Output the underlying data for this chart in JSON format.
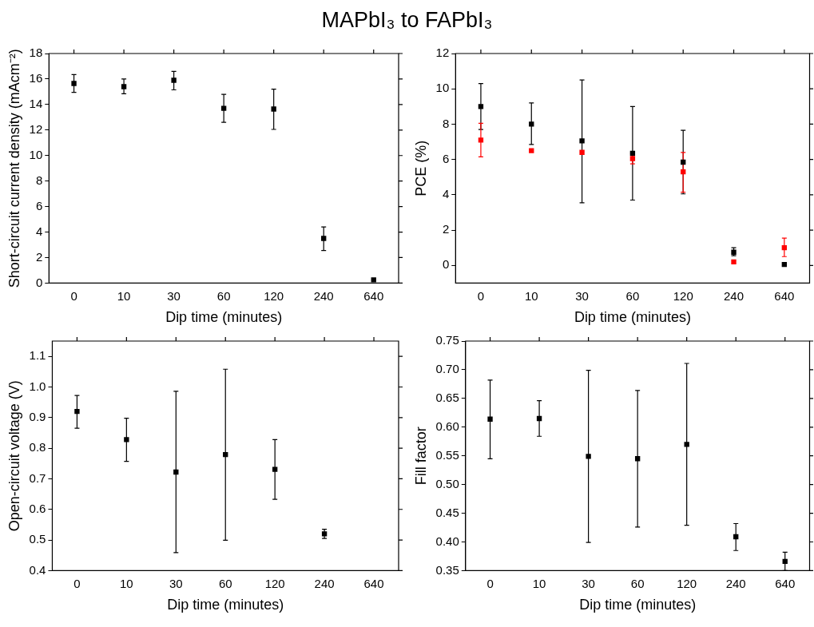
{
  "chart_data": [
    {
      "type": "scatter",
      "title": "MAPbI₃ to FAPbI₃",
      "xlabel": "Dip time (minutes)",
      "ylabel": "Short-circuit current density (mAcm⁻²)",
      "marker": "square",
      "categories": [
        "0",
        "10",
        "30",
        "60",
        "120",
        "240",
        "640"
      ],
      "ylim": [
        0,
        18
      ],
      "yticks": [
        0,
        2,
        4,
        6,
        8,
        10,
        12,
        14,
        16,
        18
      ],
      "series": [
        {
          "color": "#000000",
          "values": [
            15.65,
            15.4,
            15.9,
            13.7,
            13.65,
            3.5,
            0.25
          ],
          "errors": [
            [
              14.95,
              16.35
            ],
            [
              14.85,
              16.0
            ],
            [
              15.15,
              16.6
            ],
            [
              12.6,
              14.8
            ],
            [
              12.05,
              15.2
            ],
            [
              2.55,
              4.4
            ],
            null
          ]
        }
      ]
    },
    {
      "type": "scatter",
      "xlabel": "Dip time (minutes)",
      "ylabel": "PCE (%)",
      "marker": "square",
      "categories": [
        "0",
        "10",
        "30",
        "60",
        "120",
        "240",
        "640"
      ],
      "ylim": [
        -1,
        12
      ],
      "yticks": [
        0,
        2,
        4,
        6,
        8,
        10,
        12
      ],
      "series": [
        {
          "color": "#000000",
          "values": [
            9.0,
            8.0,
            7.05,
            6.35,
            5.85,
            0.75,
            0.05
          ],
          "errors": [
            [
              7.7,
              10.3
            ],
            [
              6.85,
              9.2
            ],
            [
              3.55,
              10.5
            ],
            [
              3.7,
              9.0
            ],
            [
              4.05,
              7.65
            ],
            [
              0.55,
              1.0
            ],
            null
          ]
        },
        {
          "color": "#ff0000",
          "values": [
            7.1,
            6.5,
            6.4,
            6.05,
            5.3,
            0.2,
            1.0
          ],
          "errors": [
            [
              6.15,
              8.05
            ],
            null,
            null,
            [
              5.75,
              6.35
            ],
            [
              4.15,
              6.4
            ],
            null,
            [
              0.5,
              1.55
            ]
          ]
        }
      ]
    },
    {
      "type": "scatter",
      "xlabel": "Dip time (minutes)",
      "ylabel": "Open-circuit voltage (V)",
      "marker": "square",
      "categories": [
        "0",
        "10",
        "30",
        "60",
        "120",
        "240",
        "640"
      ],
      "ylim": [
        0.4,
        1.15
      ],
      "yticks": [
        {
          "value": 0.4,
          "label": "0.4"
        },
        {
          "value": 0.5,
          "label": "0.5"
        },
        {
          "value": 0.6,
          "label": "0.6"
        },
        {
          "value": 0.7,
          "label": "0.7"
        },
        {
          "value": 0.8,
          "label": "0.8"
        },
        {
          "value": 0.9,
          "label": "0.9"
        },
        {
          "value": 1.0,
          "label": "1.0"
        },
        {
          "value": 1.1,
          "label": "1.1"
        }
      ],
      "series": [
        {
          "color": "#000000",
          "values": [
            0.92,
            0.828,
            0.722,
            0.779,
            0.731,
            0.52,
            null
          ],
          "errors": [
            [
              0.865,
              0.972
            ],
            [
              0.757,
              0.898
            ],
            [
              0.459,
              0.986
            ],
            [
              0.499,
              1.058
            ],
            [
              0.633,
              0.828
            ],
            [
              0.505,
              0.535
            ],
            null
          ]
        }
      ]
    },
    {
      "type": "scatter",
      "xlabel": "Dip time (minutes)",
      "ylabel": "Fill factor",
      "marker": "square",
      "categories": [
        "0",
        "10",
        "30",
        "60",
        "120",
        "240",
        "640"
      ],
      "ylim": [
        0.35,
        0.75
      ],
      "yticks": [
        {
          "value": 0.35,
          "label": "0.35"
        },
        {
          "value": 0.4,
          "label": "0.40"
        },
        {
          "value": 0.45,
          "label": "0.45"
        },
        {
          "value": 0.5,
          "label": "0.50"
        },
        {
          "value": 0.55,
          "label": "0.55"
        },
        {
          "value": 0.6,
          "label": "0.60"
        },
        {
          "value": 0.65,
          "label": "0.65"
        },
        {
          "value": 0.7,
          "label": "0.70"
        },
        {
          "value": 0.75,
          "label": "0.75"
        }
      ],
      "series": [
        {
          "color": "#000000",
          "values": [
            0.614,
            0.615,
            0.549,
            0.545,
            0.57,
            0.409,
            0.366
          ],
          "errors": [
            [
              0.545,
              0.682
            ],
            [
              0.584,
              0.646
            ],
            [
              0.399,
              0.699
            ],
            [
              0.426,
              0.664
            ],
            [
              0.429,
              0.711
            ],
            [
              0.385,
              0.432
            ],
            [
              0.35,
              0.382
            ]
          ]
        }
      ]
    }
  ]
}
